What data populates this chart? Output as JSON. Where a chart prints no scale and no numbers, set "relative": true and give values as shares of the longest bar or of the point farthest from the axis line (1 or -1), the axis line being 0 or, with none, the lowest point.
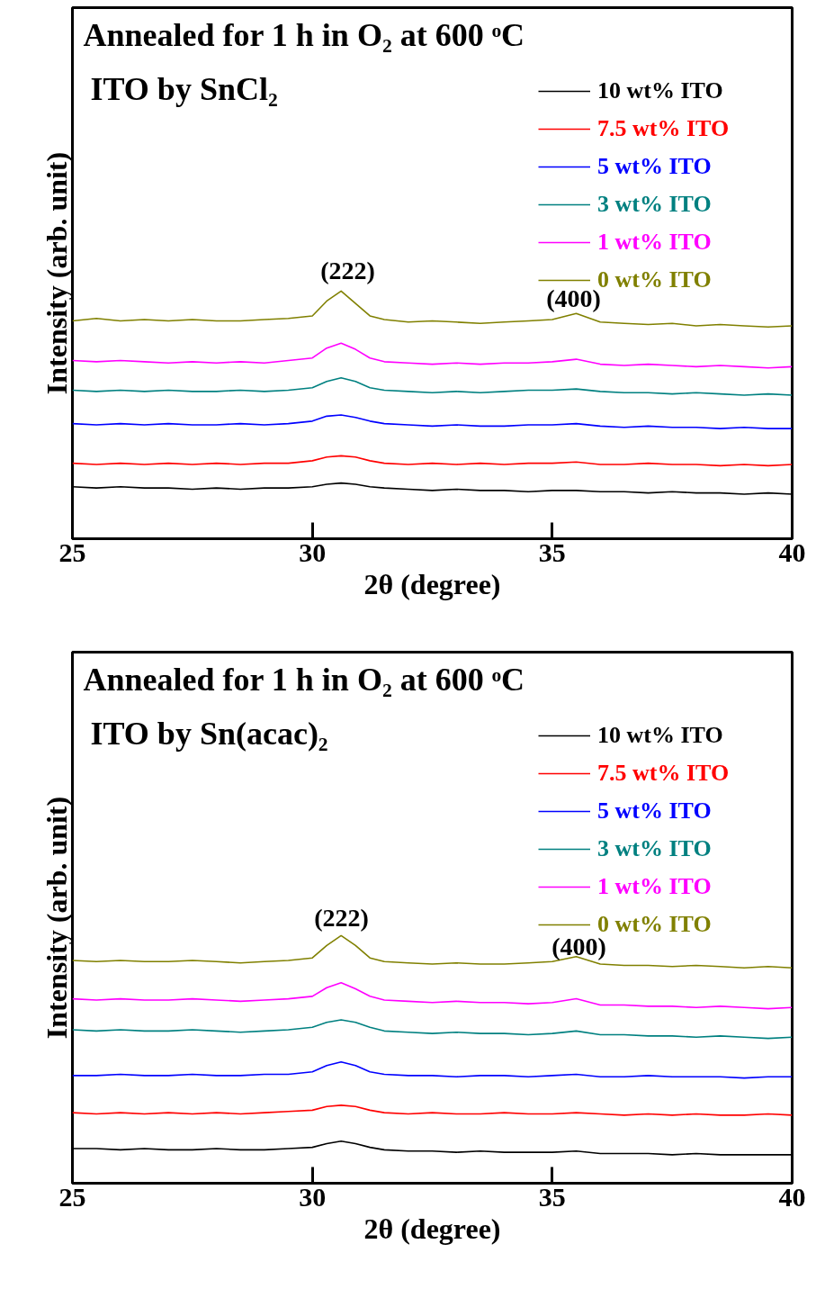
{
  "chart_data": [
    {
      "type": "line",
      "title": "Annealed for 1 h in O₂ at 600 ᵒC",
      "subtitle": "ITO by SnCl₂",
      "xlabel": "2θ (degree)",
      "ylabel": "Intensity (arb. unit)",
      "relative": true,
      "legend": "top right",
      "xlim": [
        25,
        40
      ],
      "xticks": [
        25,
        30,
        35,
        40
      ],
      "x": [
        25,
        25.5,
        26,
        26.5,
        27,
        27.5,
        28,
        28.5,
        29,
        29.5,
        30,
        30.3,
        30.6,
        30.9,
        31.2,
        31.5,
        32,
        32.5,
        33,
        33.5,
        34,
        34.5,
        35,
        35.5,
        36,
        36.5,
        37,
        37.5,
        38,
        38.5,
        39,
        39.5,
        40
      ],
      "annotations": [
        "(222)",
        "(400)"
      ],
      "series": [
        {
          "name": "10 wt% ITO",
          "color": "#000000",
          "values": [
            0.21,
            0.205,
            0.21,
            0.205,
            0.205,
            0.2,
            0.205,
            0.2,
            0.205,
            0.205,
            0.21,
            0.22,
            0.225,
            0.22,
            0.21,
            0.205,
            0.2,
            0.195,
            0.2,
            0.195,
            0.195,
            0.19,
            0.195,
            0.195,
            0.19,
            0.19,
            0.185,
            0.19,
            0.185,
            0.185,
            0.18,
            0.185,
            0.18
          ]
        },
        {
          "name": "7.5 wt% ITO",
          "color": "#ff0000",
          "values": [
            0.305,
            0.3,
            0.305,
            0.3,
            0.305,
            0.3,
            0.305,
            0.3,
            0.305,
            0.305,
            0.315,
            0.33,
            0.335,
            0.33,
            0.315,
            0.305,
            0.3,
            0.305,
            0.3,
            0.305,
            0.3,
            0.305,
            0.305,
            0.31,
            0.3,
            0.3,
            0.305,
            0.3,
            0.3,
            0.295,
            0.3,
            0.295,
            0.3
          ]
        },
        {
          "name": "5 wt% ITO",
          "color": "#0000ff",
          "values": [
            0.465,
            0.46,
            0.465,
            0.46,
            0.465,
            0.46,
            0.46,
            0.465,
            0.46,
            0.465,
            0.475,
            0.495,
            0.5,
            0.49,
            0.475,
            0.465,
            0.46,
            0.455,
            0.46,
            0.455,
            0.455,
            0.46,
            0.46,
            0.465,
            0.455,
            0.45,
            0.455,
            0.45,
            0.45,
            0.445,
            0.45,
            0.445,
            0.445
          ]
        },
        {
          "name": "3 wt% ITO",
          "color": "#008080",
          "values": [
            0.6,
            0.595,
            0.6,
            0.595,
            0.6,
            0.595,
            0.595,
            0.6,
            0.595,
            0.6,
            0.61,
            0.635,
            0.65,
            0.635,
            0.61,
            0.6,
            0.595,
            0.59,
            0.595,
            0.59,
            0.595,
            0.6,
            0.6,
            0.605,
            0.595,
            0.59,
            0.59,
            0.585,
            0.59,
            0.585,
            0.58,
            0.585,
            0.58
          ]
        },
        {
          "name": "1 wt% ITO",
          "color": "#ff00ff",
          "values": [
            0.72,
            0.715,
            0.72,
            0.715,
            0.71,
            0.715,
            0.71,
            0.715,
            0.71,
            0.72,
            0.73,
            0.77,
            0.79,
            0.765,
            0.73,
            0.715,
            0.71,
            0.705,
            0.71,
            0.705,
            0.71,
            0.71,
            0.715,
            0.725,
            0.705,
            0.7,
            0.705,
            0.7,
            0.695,
            0.7,
            0.695,
            0.69,
            0.695
          ]
        },
        {
          "name": "0 wt% ITO",
          "color": "#808000",
          "values": [
            0.88,
            0.89,
            0.88,
            0.885,
            0.88,
            0.885,
            0.88,
            0.88,
            0.885,
            0.89,
            0.9,
            0.96,
            1.0,
            0.95,
            0.9,
            0.885,
            0.875,
            0.88,
            0.875,
            0.87,
            0.875,
            0.88,
            0.885,
            0.91,
            0.875,
            0.87,
            0.865,
            0.87,
            0.86,
            0.865,
            0.86,
            0.855,
            0.86
          ]
        }
      ]
    },
    {
      "type": "line",
      "title": "Annealed for 1 h in O₂ at 600 ᵒC",
      "subtitle": "ITO by Sn(acac)₂",
      "xlabel": "2θ (degree)",
      "ylabel": "Intensity (arb. unit)",
      "relative": true,
      "legend": "top right",
      "xlim": [
        25,
        40
      ],
      "xticks": [
        25,
        30,
        35,
        40
      ],
      "x": [
        25,
        25.5,
        26,
        26.5,
        27,
        27.5,
        28,
        28.5,
        29,
        29.5,
        30,
        30.3,
        30.6,
        30.9,
        31.2,
        31.5,
        32,
        32.5,
        33,
        33.5,
        34,
        34.5,
        35,
        35.5,
        36,
        36.5,
        37,
        37.5,
        38,
        38.5,
        39,
        39.5,
        40
      ],
      "annotations": [
        "(222)",
        "(400)"
      ],
      "series": [
        {
          "name": "10 wt% ITO",
          "color": "#000000",
          "values": [
            0.14,
            0.14,
            0.135,
            0.14,
            0.135,
            0.135,
            0.14,
            0.135,
            0.135,
            0.14,
            0.145,
            0.16,
            0.17,
            0.16,
            0.145,
            0.135,
            0.13,
            0.13,
            0.125,
            0.13,
            0.125,
            0.125,
            0.125,
            0.13,
            0.12,
            0.12,
            0.12,
            0.115,
            0.12,
            0.115,
            0.115,
            0.115,
            0.115
          ]
        },
        {
          "name": "7.5 wt% ITO",
          "color": "#ff0000",
          "values": [
            0.285,
            0.28,
            0.285,
            0.28,
            0.285,
            0.28,
            0.285,
            0.28,
            0.285,
            0.29,
            0.295,
            0.31,
            0.315,
            0.31,
            0.295,
            0.285,
            0.28,
            0.285,
            0.28,
            0.28,
            0.285,
            0.28,
            0.28,
            0.285,
            0.28,
            0.275,
            0.28,
            0.275,
            0.28,
            0.275,
            0.275,
            0.28,
            0.275
          ]
        },
        {
          "name": "5 wt% ITO",
          "color": "#0000ff",
          "values": [
            0.435,
            0.435,
            0.44,
            0.435,
            0.435,
            0.44,
            0.435,
            0.435,
            0.44,
            0.44,
            0.45,
            0.475,
            0.49,
            0.475,
            0.45,
            0.44,
            0.435,
            0.435,
            0.43,
            0.435,
            0.435,
            0.43,
            0.435,
            0.44,
            0.43,
            0.43,
            0.435,
            0.43,
            0.43,
            0.43,
            0.425,
            0.43,
            0.43
          ]
        },
        {
          "name": "3 wt% ITO",
          "color": "#008080",
          "values": [
            0.62,
            0.615,
            0.62,
            0.615,
            0.615,
            0.62,
            0.615,
            0.61,
            0.615,
            0.62,
            0.63,
            0.65,
            0.66,
            0.65,
            0.63,
            0.615,
            0.61,
            0.605,
            0.61,
            0.605,
            0.605,
            0.6,
            0.605,
            0.615,
            0.6,
            0.6,
            0.595,
            0.595,
            0.59,
            0.595,
            0.59,
            0.585,
            0.59
          ]
        },
        {
          "name": "1 wt% ITO",
          "color": "#ff00ff",
          "values": [
            0.745,
            0.74,
            0.745,
            0.74,
            0.74,
            0.745,
            0.74,
            0.735,
            0.74,
            0.745,
            0.755,
            0.79,
            0.81,
            0.785,
            0.755,
            0.74,
            0.735,
            0.73,
            0.735,
            0.73,
            0.73,
            0.725,
            0.73,
            0.745,
            0.72,
            0.72,
            0.715,
            0.715,
            0.71,
            0.715,
            0.71,
            0.705,
            0.71
          ]
        },
        {
          "name": "0 wt% ITO",
          "color": "#808000",
          "values": [
            0.9,
            0.895,
            0.9,
            0.895,
            0.895,
            0.9,
            0.895,
            0.89,
            0.895,
            0.9,
            0.91,
            0.96,
            1.0,
            0.96,
            0.91,
            0.895,
            0.89,
            0.885,
            0.89,
            0.885,
            0.885,
            0.89,
            0.895,
            0.915,
            0.885,
            0.88,
            0.88,
            0.875,
            0.88,
            0.875,
            0.87,
            0.875,
            0.87
          ]
        }
      ]
    }
  ]
}
